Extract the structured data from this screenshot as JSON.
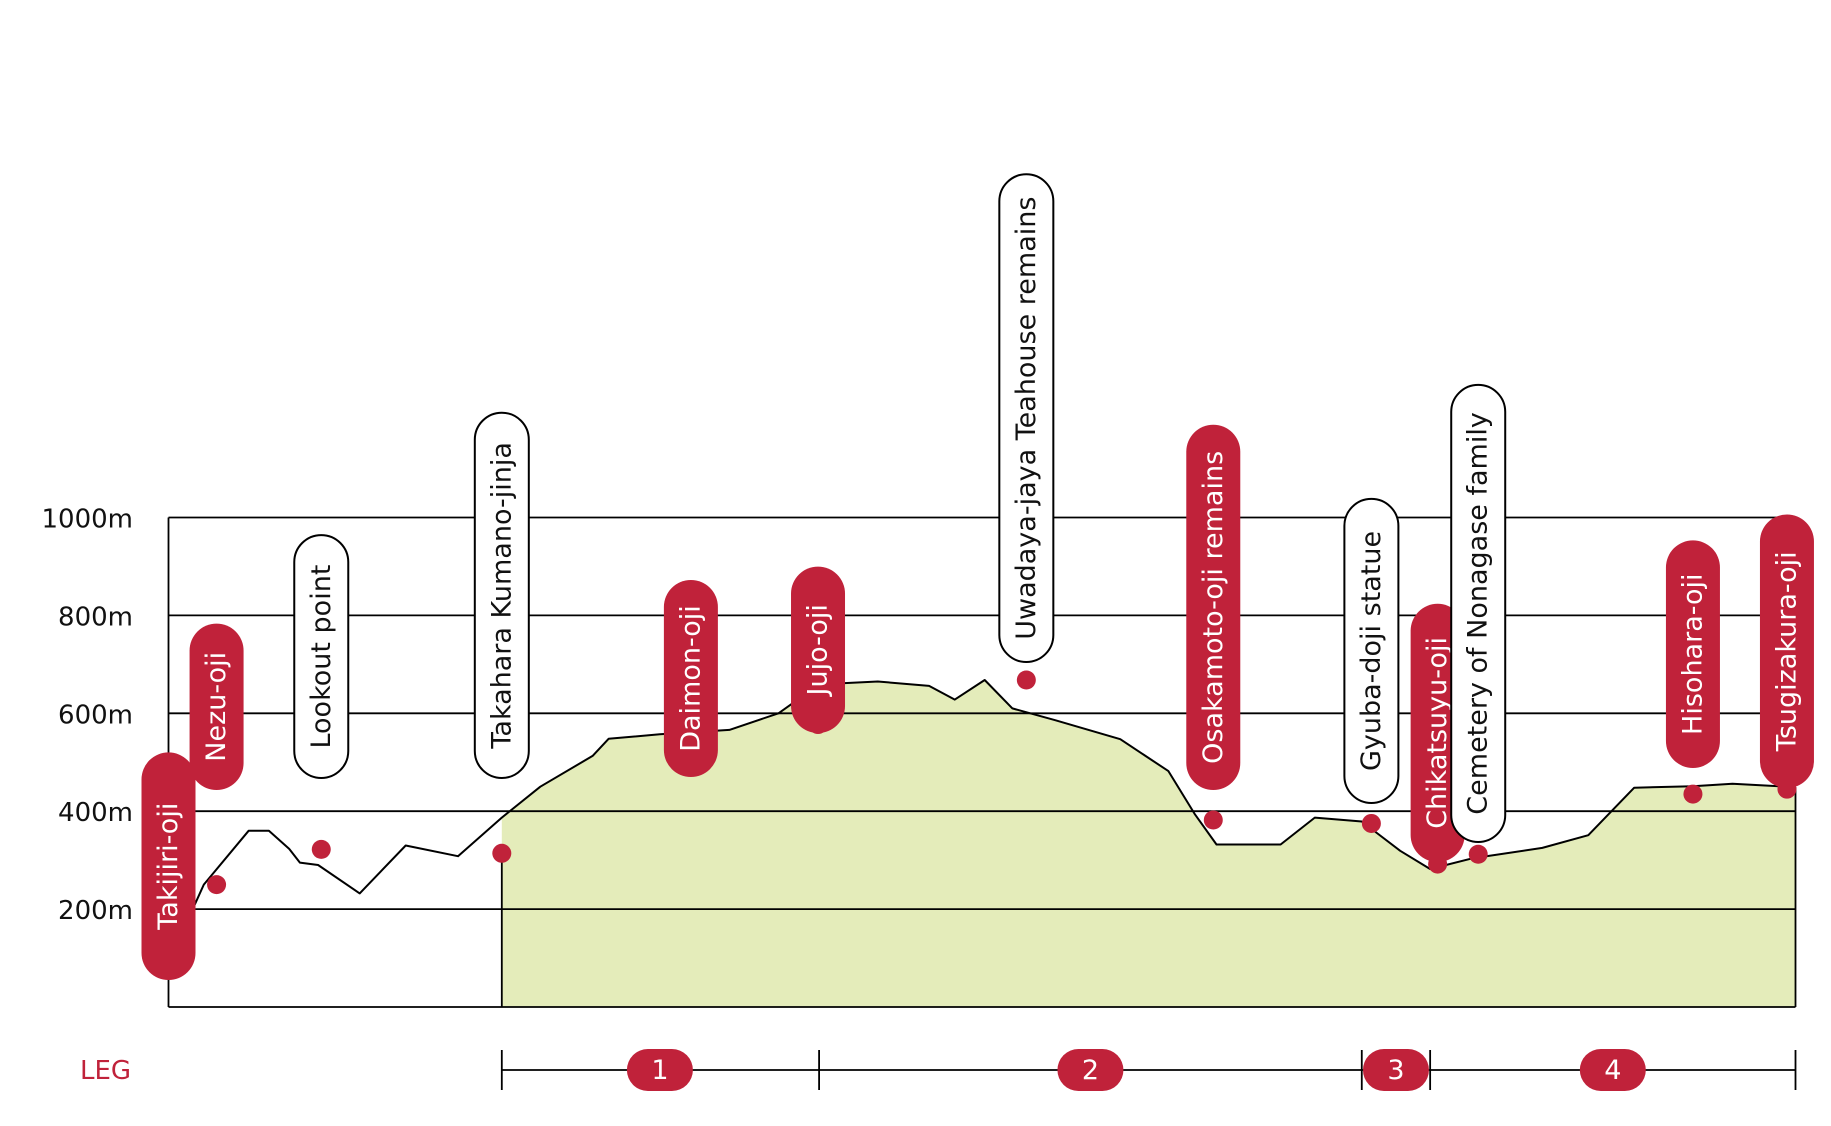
{
  "chart_data": {
    "type": "area",
    "title": "",
    "xlabel": "",
    "ylabel": "",
    "ylim": [
      0,
      1000
    ],
    "y_ticks": [
      "200m",
      "400m",
      "600m",
      "800m",
      "1000m"
    ],
    "grid": true,
    "colors": {
      "area_fill": "#e4ecba",
      "marker": "#c0223a",
      "line": "#000000",
      "pill_white_fill": "#ffffff",
      "pill_red_fill": "#c0223a"
    },
    "profile": [
      [
        0,
        90
      ],
      [
        0.33,
        250
      ],
      [
        0.75,
        360
      ],
      [
        0.94,
        360
      ],
      [
        1.13,
        323
      ],
      [
        1.23,
        295
      ],
      [
        1.4,
        290
      ],
      [
        1.79,
        232
      ],
      [
        2.22,
        330
      ],
      [
        2.71,
        308
      ],
      [
        3.12,
        387
      ],
      [
        3.48,
        450
      ],
      [
        3.97,
        513
      ],
      [
        4.12,
        548
      ],
      [
        4.6,
        557
      ],
      [
        5.25,
        566
      ],
      [
        5.71,
        600
      ],
      [
        6.09,
        659
      ],
      [
        6.64,
        665
      ],
      [
        7.12,
        656
      ],
      [
        7.36,
        628
      ],
      [
        7.64,
        668
      ],
      [
        7.9,
        610
      ],
      [
        8.3,
        586
      ],
      [
        8.91,
        547
      ],
      [
        9.36,
        482
      ],
      [
        9.61,
        393
      ],
      [
        9.81,
        332
      ],
      [
        10.41,
        332
      ],
      [
        10.73,
        387
      ],
      [
        11.17,
        379
      ],
      [
        11.53,
        319
      ],
      [
        11.81,
        282
      ],
      [
        12.21,
        304
      ],
      [
        12.86,
        325
      ],
      [
        13.29,
        351
      ],
      [
        13.72,
        448
      ],
      [
        14.27,
        451
      ],
      [
        14.64,
        456
      ],
      [
        15.15,
        450
      ],
      [
        15.23,
        449
      ]
    ],
    "leg_start_km": 3.12,
    "waypoints": [
      {
        "name": "Takijiri-oji",
        "km": 0.0,
        "alt": 80,
        "style": "red",
        "label_bottom": 980
      },
      {
        "name": "Nezu-oji",
        "km": 0.45,
        "alt": 250,
        "style": "red",
        "label_bottom": 790
      },
      {
        "name": "Lookout point",
        "km": 1.43,
        "alt": 322,
        "style": "white",
        "label_bottom": 778
      },
      {
        "name": "Takahara Kumano-jinja",
        "km": 3.12,
        "alt": 314,
        "style": "white",
        "label_bottom": 778
      },
      {
        "name": "Daimon-oji",
        "km": 4.89,
        "alt": 535,
        "style": "red",
        "label_bottom": 777
      },
      {
        "name": "Jujo-oji",
        "km": 6.08,
        "alt": 577,
        "style": "red",
        "label_bottom": 733
      },
      {
        "name": "Uwadaya-jaya Teahouse remains",
        "km": 8.03,
        "alt": 668,
        "style": "white",
        "label_bottom": 662
      },
      {
        "name": "Osakamoto-oji remains",
        "km": 9.78,
        "alt": 382,
        "style": "red",
        "label_bottom": 790
      },
      {
        "name": "Gyuba-doji statue",
        "km": 11.26,
        "alt": 375,
        "style": "white",
        "label_bottom": 803
      },
      {
        "name": "Chikatsuyu-oji",
        "km": 11.88,
        "alt": 292,
        "style": "red",
        "label_bottom": 862
      },
      {
        "name": "Cemetery of Nonagase family",
        "km": 12.26,
        "alt": 312,
        "style": "white",
        "label_bottom": 842
      },
      {
        "name": "Hisohara-oji",
        "km": 14.27,
        "alt": 435,
        "style": "red",
        "label_bottom": 768
      },
      {
        "name": "Tsugizakura-oji",
        "km": 15.15,
        "alt": 445,
        "style": "red",
        "label_bottom": 788
      }
    ],
    "legs": {
      "label": "LEG",
      "boundaries_km": [
        3.12,
        6.09,
        11.17,
        11.81,
        15.23
      ],
      "segments": [
        {
          "label": "1",
          "center_km": 4.6
        },
        {
          "label": "2",
          "center_km": 8.63
        },
        {
          "label": "3",
          "center_km": 11.49
        },
        {
          "label": "4",
          "center_km": 13.52
        }
      ]
    }
  }
}
